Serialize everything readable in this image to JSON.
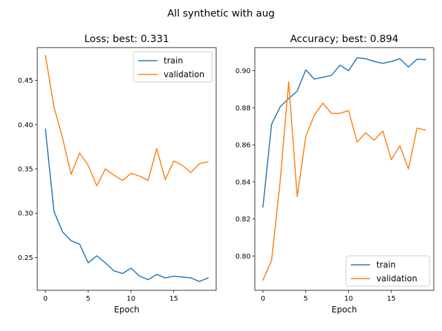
{
  "figure": {
    "suptitle": "All synthetic with aug"
  },
  "colors": {
    "train": "#1f77b4",
    "validation": "#ff7f0e"
  },
  "chart_data": [
    {
      "type": "line",
      "title": "Loss; best: 0.331",
      "xlabel": "Epoch",
      "ylabel": "",
      "xlim": [
        -0.95,
        19.95
      ],
      "ylim": [
        0.213,
        0.487
      ],
      "xticks": [
        0,
        5,
        10,
        15
      ],
      "xtick_labels": [
        "0",
        "5",
        "10",
        "15"
      ],
      "yticks": [
        0.25,
        0.3,
        0.35,
        0.4,
        0.45
      ],
      "ytick_labels": [
        "0.25",
        "0.30",
        "0.35",
        "0.40",
        "0.45"
      ],
      "legend_position": "top-right",
      "x": [
        0,
        1,
        2,
        3,
        4,
        5,
        6,
        7,
        8,
        9,
        10,
        11,
        12,
        13,
        14,
        15,
        16,
        17,
        18,
        19
      ],
      "series": [
        {
          "name": "train",
          "color": "#1f77b4",
          "values": [
            0.395,
            0.302,
            0.279,
            0.269,
            0.265,
            0.244,
            0.252,
            0.244,
            0.235,
            0.232,
            0.238,
            0.229,
            0.225,
            0.231,
            0.227,
            0.229,
            0.228,
            0.227,
            0.223,
            0.227
          ]
        },
        {
          "name": "validation",
          "color": "#ff7f0e",
          "values": [
            0.478,
            0.42,
            0.385,
            0.344,
            0.368,
            0.354,
            0.331,
            0.35,
            0.343,
            0.337,
            0.345,
            0.342,
            0.337,
            0.373,
            0.338,
            0.359,
            0.354,
            0.346,
            0.356,
            0.358
          ]
        }
      ]
    },
    {
      "type": "line",
      "title": "Accuracy; best: 0.894",
      "xlabel": "Epoch",
      "ylabel": "",
      "xlim": [
        -0.95,
        19.95
      ],
      "ylim": [
        0.7815,
        0.9125
      ],
      "xticks": [
        0,
        5,
        10,
        15
      ],
      "xtick_labels": [
        "0",
        "5",
        "10",
        "15"
      ],
      "yticks": [
        0.8,
        0.82,
        0.84,
        0.86,
        0.88,
        0.9
      ],
      "ytick_labels": [
        "0.80",
        "0.82",
        "0.84",
        "0.86",
        "0.88",
        "0.90"
      ],
      "legend_position": "bottom-right",
      "x": [
        0,
        1,
        2,
        3,
        4,
        5,
        6,
        7,
        8,
        9,
        10,
        11,
        12,
        13,
        14,
        15,
        16,
        17,
        18,
        19
      ],
      "series": [
        {
          "name": "train",
          "color": "#1f77b4",
          "values": [
            0.8265,
            0.871,
            0.8805,
            0.885,
            0.889,
            0.9005,
            0.8955,
            0.8965,
            0.8975,
            0.903,
            0.9,
            0.907,
            0.9065,
            0.905,
            0.904,
            0.905,
            0.9065,
            0.902,
            0.9062,
            0.906
          ]
        },
        {
          "name": "validation",
          "color": "#ff7f0e",
          "values": [
            0.787,
            0.7975,
            0.84,
            0.894,
            0.832,
            0.8645,
            0.876,
            0.8825,
            0.877,
            0.877,
            0.8785,
            0.8615,
            0.8665,
            0.8625,
            0.8675,
            0.852,
            0.8595,
            0.847,
            0.869,
            0.868
          ]
        }
      ]
    }
  ]
}
